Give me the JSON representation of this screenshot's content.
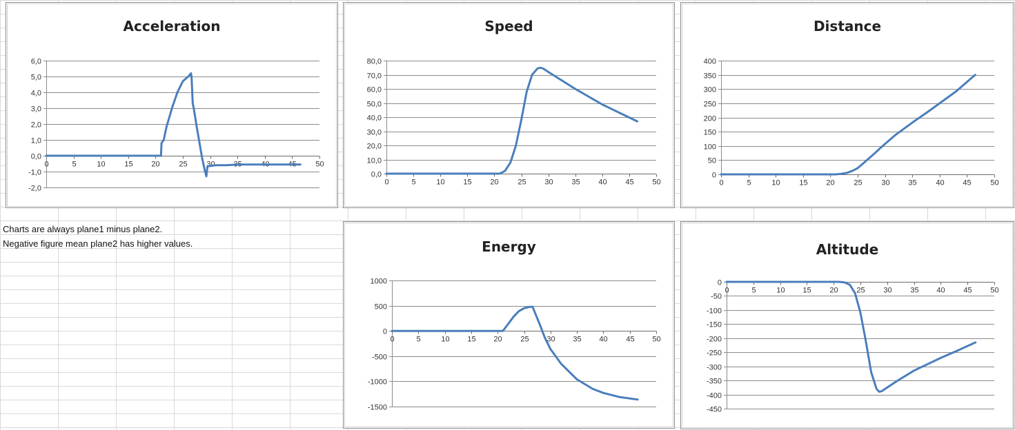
{
  "notes": {
    "line1": "Charts are always plane1 minus plane2.",
    "line2": "Negative figure mean plane2 has higher values."
  },
  "colors": {
    "series": "#4a7ebb",
    "gridline": "#8a8a8a",
    "cell_grid": "#d9d9d9"
  },
  "chart_data": [
    {
      "id": "acceleration",
      "type": "line",
      "title": "Acceleration",
      "ylim": [
        -2,
        6
      ],
      "yticks": [
        -2,
        -1,
        0,
        1,
        2,
        3,
        4,
        5,
        6
      ],
      "ytick_labels": [
        "-2,0",
        "-1,0",
        "0,0",
        "1,0",
        "2,0",
        "3,0",
        "4,0",
        "5,0",
        "6,0"
      ],
      "xlim": [
        0,
        50
      ],
      "xticks": [
        0,
        5,
        10,
        15,
        20,
        25,
        30,
        35,
        40,
        45,
        50
      ],
      "x": [
        0,
        5,
        10,
        15,
        20,
        21,
        21.1,
        21.5,
        22,
        23,
        24,
        25,
        26,
        26.5,
        26.6,
        26.8,
        27,
        27.5,
        28,
        28.5,
        29,
        29.3,
        29.5,
        29.7,
        30,
        31,
        33,
        35,
        40,
        46.5
      ],
      "y": [
        0,
        0,
        0,
        0,
        0,
        0,
        0.8,
        1.0,
        1.8,
        3.0,
        4.0,
        4.7,
        5.0,
        5.2,
        4.9,
        3.3,
        3.0,
        1.9,
        0.9,
        -0.1,
        -0.9,
        -1.3,
        -0.7,
        -0.65,
        -0.65,
        -0.6,
        -0.6,
        -0.55,
        -0.55,
        -0.55
      ]
    },
    {
      "id": "speed",
      "type": "line",
      "title": "Speed",
      "ylim": [
        0,
        80
      ],
      "yticks": [
        0,
        10,
        20,
        30,
        40,
        50,
        60,
        70,
        80
      ],
      "ytick_labels": [
        "0,0",
        "10,0",
        "20,0",
        "30,0",
        "40,0",
        "50,0",
        "60,0",
        "70,0",
        "80,0"
      ],
      "xlim": [
        0,
        50
      ],
      "xticks": [
        0,
        5,
        10,
        15,
        20,
        25,
        30,
        35,
        40,
        45,
        50
      ],
      "x": [
        0,
        5,
        10,
        15,
        19,
        20,
        21,
        22,
        23,
        24,
        25,
        26,
        27,
        28,
        28.5,
        29,
        30,
        35,
        40,
        46.5
      ],
      "y": [
        0,
        0,
        0,
        0,
        0,
        0,
        0,
        2,
        8,
        20,
        38,
        58,
        70,
        74.5,
        75,
        74.5,
        72,
        60,
        49,
        37
      ]
    },
    {
      "id": "distance",
      "type": "line",
      "title": "Distance",
      "ylim": [
        0,
        400
      ],
      "yticks": [
        0,
        50,
        100,
        150,
        200,
        250,
        300,
        350,
        400
      ],
      "ytick_labels": [
        "0",
        "50",
        "100",
        "150",
        "200",
        "250",
        "300",
        "350",
        "400"
      ],
      "xlim": [
        0,
        50
      ],
      "xticks": [
        0,
        5,
        10,
        15,
        20,
        25,
        30,
        35,
        40,
        45,
        50
      ],
      "x": [
        0,
        5,
        10,
        15,
        20,
        21,
        22,
        23,
        24,
        25,
        26,
        27,
        28,
        29,
        30,
        32,
        35,
        38,
        40,
        43,
        46.5
      ],
      "y": [
        0,
        0,
        0,
        0,
        0,
        0,
        2,
        5,
        12,
        22,
        38,
        55,
        72,
        90,
        107,
        140,
        182,
        222,
        250,
        292,
        350
      ]
    },
    {
      "id": "energy",
      "type": "line",
      "title": "Energy",
      "ylim": [
        -1500,
        1000
      ],
      "yticks": [
        -1500,
        -1000,
        -500,
        0,
        500,
        1000
      ],
      "ytick_labels": [
        "-1500",
        "-1000",
        "-500",
        "0",
        "500",
        "1000"
      ],
      "xlim": [
        0,
        50
      ],
      "xticks": [
        0,
        5,
        10,
        15,
        20,
        25,
        30,
        35,
        40,
        45,
        50
      ],
      "x": [
        0,
        5,
        10,
        15,
        20,
        21,
        22,
        23,
        24,
        25,
        26,
        26.6,
        27,
        28,
        29,
        30,
        32,
        35,
        38,
        40,
        43,
        46.5
      ],
      "y": [
        0,
        0,
        0,
        0,
        0,
        0,
        140,
        280,
        390,
        450,
        475,
        480,
        380,
        120,
        -150,
        -360,
        -650,
        -960,
        -1150,
        -1230,
        -1310,
        -1360
      ]
    },
    {
      "id": "altitude",
      "type": "line",
      "title": "Altitude",
      "ylim": [
        -450,
        0
      ],
      "yticks": [
        -450,
        -400,
        -350,
        -300,
        -250,
        -200,
        -150,
        -100,
        -50,
        0
      ],
      "ytick_labels": [
        "-450",
        "-400",
        "-350",
        "-300",
        "-250",
        "-200",
        "-150",
        "-100",
        "-50",
        "0"
      ],
      "xlim": [
        0,
        50
      ],
      "xticks": [
        0,
        5,
        10,
        15,
        20,
        25,
        30,
        35,
        40,
        45,
        50
      ],
      "x": [
        0,
        5,
        10,
        15,
        20,
        21,
        22,
        23,
        24,
        25,
        26,
        27,
        28,
        28.5,
        29,
        30,
        32,
        35,
        40,
        43,
        46.5
      ],
      "y": [
        0,
        0,
        0,
        0,
        0,
        0,
        -2,
        -10,
        -40,
        -110,
        -210,
        -320,
        -380,
        -390,
        -388,
        -375,
        -350,
        -315,
        -270,
        -245,
        -215
      ]
    }
  ]
}
